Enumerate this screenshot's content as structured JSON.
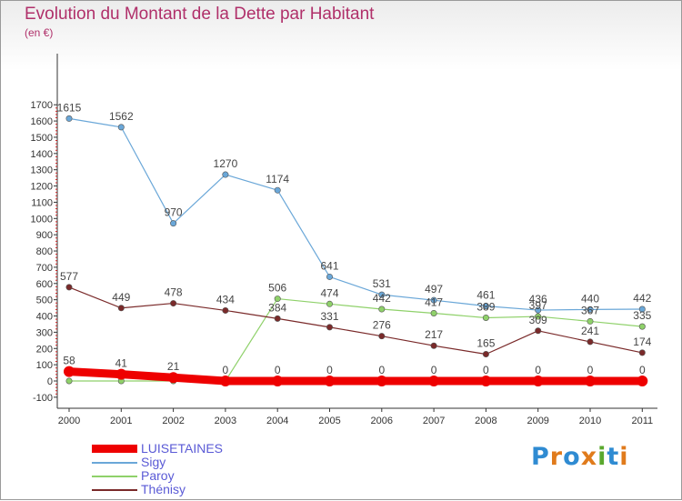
{
  "header": {
    "title": "Evolution du Montant de la Dette par Habitant",
    "subtitle": "(en €)"
  },
  "logo": {
    "text": "Proxiti",
    "letters": [
      {
        "ch": "P",
        "color": "#2f8bd2"
      },
      {
        "ch": "r",
        "color": "#e07b1c"
      },
      {
        "ch": "o",
        "color": "#2f8bd2"
      },
      {
        "ch": "x",
        "color": "#e07b1c"
      },
      {
        "ch": "i",
        "color": "#5aa82e"
      },
      {
        "ch": "t",
        "color": "#2f8bd2"
      },
      {
        "ch": "i",
        "color": "#e07b1c"
      }
    ]
  },
  "chart_data": {
    "type": "line",
    "title": "Evolution du Montant de la Dette par Habitant",
    "subtitle": "(en €)",
    "x": [
      "2000",
      "2001",
      "2002",
      "2003",
      "2004",
      "2005",
      "2006",
      "2007",
      "2008",
      "2009",
      "2010",
      "2011"
    ],
    "yticks": [
      "-100",
      "0",
      "100",
      "200",
      "300",
      "400",
      "500",
      "600",
      "700",
      "800",
      "900",
      "1000",
      "1100",
      "1200",
      "1300",
      "1400",
      "1500",
      "1600",
      "1700"
    ],
    "ylim": [
      -100,
      1700
    ],
    "grid": false,
    "legend": "bottom-left",
    "series": [
      {
        "name": "LUISETAINES",
        "color": "#ee0000",
        "values": [
          58,
          41,
          21,
          0,
          0,
          0,
          0,
          0,
          0,
          0,
          0,
          0
        ],
        "labels": [
          "58",
          "41",
          "21",
          "0",
          "0",
          "0",
          "0",
          "0",
          "0",
          "0",
          "0",
          "0"
        ]
      },
      {
        "name": "Sigy",
        "color": "#6aa7d8",
        "values": [
          1615,
          1562,
          970,
          1270,
          1174,
          641,
          531,
          497,
          461,
          436,
          440,
          442
        ],
        "labels": [
          "1615",
          "1562",
          "970",
          "1270",
          "1174",
          "641",
          "531",
          "497",
          "461",
          "436",
          "440",
          "442"
        ]
      },
      {
        "name": "Paroy",
        "color": "#8fd16a",
        "values": [
          0,
          0,
          0,
          0,
          506,
          474,
          442,
          417,
          389,
          397,
          367,
          335
        ],
        "labels": [
          "",
          "",
          "",
          "",
          "506",
          "474",
          "442",
          "417",
          "389",
          "397",
          "367",
          "335"
        ]
      },
      {
        "name": "Thénisy",
        "color": "#7a2a2a",
        "values": [
          577,
          449,
          478,
          434,
          384,
          331,
          276,
          217,
          165,
          309,
          241,
          174
        ],
        "labels": [
          "577",
          "449",
          "478",
          "434",
          "384",
          "331",
          "276",
          "217",
          "165",
          "309",
          "241",
          "174"
        ]
      }
    ]
  }
}
